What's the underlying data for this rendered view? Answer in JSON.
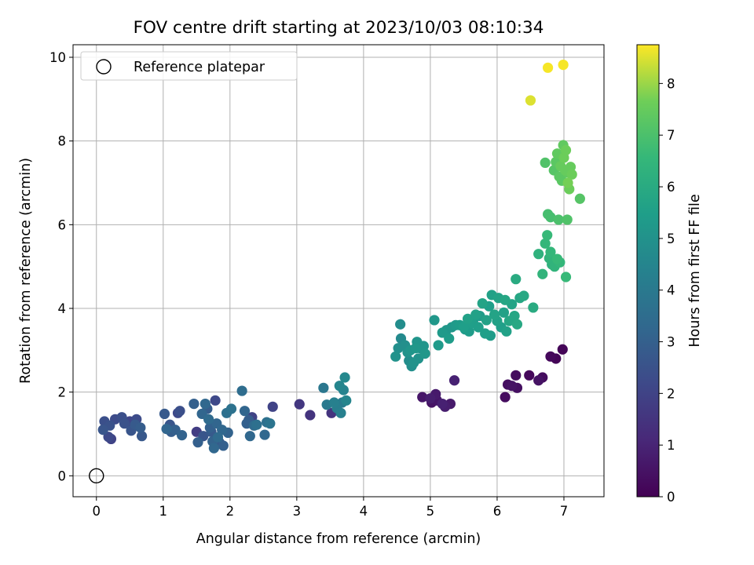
{
  "chart_data": {
    "type": "scatter",
    "title": "FOV centre drift starting at 2023/10/03 08:10:34",
    "xlabel": "Angular distance from reference (arcmin)",
    "ylabel": "Rotation from reference (arcmin)",
    "xlim": [
      -0.35,
      7.6
    ],
    "ylim": [
      -0.5,
      10.3
    ],
    "xticks": [
      "0",
      "1",
      "2",
      "3",
      "4",
      "5",
      "6",
      "7"
    ],
    "yticks": [
      "0",
      "2",
      "4",
      "6",
      "8",
      "10"
    ],
    "grid": true,
    "legend": {
      "placement": "top-left",
      "entries": [
        "Reference platepar"
      ]
    },
    "reference_point": {
      "x": 0,
      "y": 0
    },
    "colorbar": {
      "label": "Hours from first FF file",
      "range": [
        0,
        8.75
      ],
      "ticks": [
        "0",
        "1",
        "2",
        "3",
        "4",
        "5",
        "6",
        "7",
        "8"
      ],
      "colormap": "viridis"
    },
    "points": [
      {
        "x": 0.1,
        "y": 1.1,
        "h": 2.6
      },
      {
        "x": 0.12,
        "y": 1.3,
        "h": 2.4
      },
      {
        "x": 0.18,
        "y": 0.93,
        "h": 2.2
      },
      {
        "x": 0.22,
        "y": 0.88,
        "h": 2.0
      },
      {
        "x": 0.2,
        "y": 1.2,
        "h": 2.5
      },
      {
        "x": 0.28,
        "y": 1.35,
        "h": 2.3
      },
      {
        "x": 0.38,
        "y": 1.4,
        "h": 2.4
      },
      {
        "x": 0.42,
        "y": 1.25,
        "h": 2.5
      },
      {
        "x": 0.5,
        "y": 1.3,
        "h": 2.1
      },
      {
        "x": 0.52,
        "y": 1.08,
        "h": 2.6
      },
      {
        "x": 0.58,
        "y": 1.22,
        "h": 2.8
      },
      {
        "x": 0.6,
        "y": 1.35,
        "h": 2.3
      },
      {
        "x": 0.66,
        "y": 1.15,
        "h": 2.9
      },
      {
        "x": 0.68,
        "y": 0.95,
        "h": 2.7
      },
      {
        "x": 1.02,
        "y": 1.48,
        "h": 2.8
      },
      {
        "x": 1.05,
        "y": 1.12,
        "h": 3.2
      },
      {
        "x": 1.1,
        "y": 1.22,
        "h": 2.6
      },
      {
        "x": 1.12,
        "y": 1.05,
        "h": 2.9
      },
      {
        "x": 1.18,
        "y": 1.1,
        "h": 3.0
      },
      {
        "x": 1.22,
        "y": 1.5,
        "h": 2.2
      },
      {
        "x": 1.25,
        "y": 1.55,
        "h": 2.4
      },
      {
        "x": 1.28,
        "y": 0.97,
        "h": 3.1
      },
      {
        "x": 1.46,
        "y": 1.72,
        "h": 3.0
      },
      {
        "x": 1.5,
        "y": 1.05,
        "h": 1.8
      },
      {
        "x": 1.52,
        "y": 0.8,
        "h": 3.0
      },
      {
        "x": 1.58,
        "y": 1.48,
        "h": 3.2
      },
      {
        "x": 1.6,
        "y": 0.95,
        "h": 2.6
      },
      {
        "x": 1.63,
        "y": 1.72,
        "h": 3.3
      },
      {
        "x": 1.66,
        "y": 1.6,
        "h": 2.9
      },
      {
        "x": 1.68,
        "y": 1.35,
        "h": 3.4
      },
      {
        "x": 1.7,
        "y": 1.15,
        "h": 3.0
      },
      {
        "x": 1.72,
        "y": 1.05,
        "h": 2.8
      },
      {
        "x": 1.74,
        "y": 0.82,
        "h": 3.1
      },
      {
        "x": 1.76,
        "y": 0.66,
        "h": 3.3
      },
      {
        "x": 1.78,
        "y": 1.8,
        "h": 2.2
      },
      {
        "x": 1.8,
        "y": 1.25,
        "h": 3.2
      },
      {
        "x": 1.82,
        "y": 0.92,
        "h": 3.4
      },
      {
        "x": 1.84,
        "y": 0.8,
        "h": 2.7
      },
      {
        "x": 1.88,
        "y": 1.1,
        "h": 3.3
      },
      {
        "x": 1.9,
        "y": 0.72,
        "h": 3.0
      },
      {
        "x": 1.95,
        "y": 1.5,
        "h": 3.6
      },
      {
        "x": 1.97,
        "y": 1.03,
        "h": 3.1
      },
      {
        "x": 2.02,
        "y": 1.6,
        "h": 3.7
      },
      {
        "x": 2.18,
        "y": 2.03,
        "h": 3.5
      },
      {
        "x": 2.22,
        "y": 1.55,
        "h": 3.2
      },
      {
        "x": 2.25,
        "y": 1.25,
        "h": 3.0
      },
      {
        "x": 2.28,
        "y": 1.33,
        "h": 2.9
      },
      {
        "x": 2.3,
        "y": 0.95,
        "h": 3.3
      },
      {
        "x": 2.33,
        "y": 1.4,
        "h": 2.0
      },
      {
        "x": 2.36,
        "y": 1.2,
        "h": 3.4
      },
      {
        "x": 2.4,
        "y": 1.22,
        "h": 3.6
      },
      {
        "x": 2.52,
        "y": 0.98,
        "h": 3.3
      },
      {
        "x": 2.55,
        "y": 1.28,
        "h": 3.6
      },
      {
        "x": 2.6,
        "y": 1.25,
        "h": 3.8
      },
      {
        "x": 2.64,
        "y": 1.65,
        "h": 2.0
      },
      {
        "x": 3.04,
        "y": 1.71,
        "h": 1.6
      },
      {
        "x": 3.2,
        "y": 1.45,
        "h": 1.5
      },
      {
        "x": 3.4,
        "y": 2.1,
        "h": 3.9
      },
      {
        "x": 3.45,
        "y": 1.7,
        "h": 4.0
      },
      {
        "x": 3.52,
        "y": 1.5,
        "h": 1.5
      },
      {
        "x": 3.56,
        "y": 1.75,
        "h": 4.3
      },
      {
        "x": 3.6,
        "y": 1.62,
        "h": 4.2
      },
      {
        "x": 3.64,
        "y": 2.15,
        "h": 4.5
      },
      {
        "x": 3.66,
        "y": 1.5,
        "h": 4.3
      },
      {
        "x": 3.68,
        "y": 1.75,
        "h": 4.1
      },
      {
        "x": 3.7,
        "y": 2.05,
        "h": 4.4
      },
      {
        "x": 3.72,
        "y": 2.35,
        "h": 4.6
      },
      {
        "x": 3.74,
        "y": 1.8,
        "h": 4.5
      },
      {
        "x": 4.48,
        "y": 2.85,
        "h": 5.0
      },
      {
        "x": 4.52,
        "y": 3.05,
        "h": 4.9
      },
      {
        "x": 4.55,
        "y": 3.62,
        "h": 4.8
      },
      {
        "x": 4.56,
        "y": 3.28,
        "h": 4.7
      },
      {
        "x": 4.62,
        "y": 3.12,
        "h": 4.9
      },
      {
        "x": 4.66,
        "y": 2.95,
        "h": 5.0
      },
      {
        "x": 4.68,
        "y": 2.75,
        "h": 4.8
      },
      {
        "x": 4.7,
        "y": 3.0,
        "h": 5.1
      },
      {
        "x": 4.72,
        "y": 2.62,
        "h": 4.9
      },
      {
        "x": 4.75,
        "y": 2.7,
        "h": 5.0
      },
      {
        "x": 4.78,
        "y": 3.05,
        "h": 5.2
      },
      {
        "x": 4.8,
        "y": 3.2,
        "h": 5.1
      },
      {
        "x": 4.82,
        "y": 2.8,
        "h": 5.0
      },
      {
        "x": 4.85,
        "y": 3.05,
        "h": 4.9
      },
      {
        "x": 4.9,
        "y": 3.1,
        "h": 5.1
      },
      {
        "x": 4.92,
        "y": 2.92,
        "h": 5.2
      },
      {
        "x": 4.88,
        "y": 1.88,
        "h": 0.6
      },
      {
        "x": 5.0,
        "y": 1.85,
        "h": 0.8
      },
      {
        "x": 5.02,
        "y": 1.75,
        "h": 0.5
      },
      {
        "x": 5.08,
        "y": 1.95,
        "h": 0.7
      },
      {
        "x": 5.1,
        "y": 1.8,
        "h": 0.6
      },
      {
        "x": 5.18,
        "y": 1.72,
        "h": 0.9
      },
      {
        "x": 5.22,
        "y": 1.65,
        "h": 0.8
      },
      {
        "x": 5.3,
        "y": 1.72,
        "h": 0.7
      },
      {
        "x": 5.36,
        "y": 2.28,
        "h": 0.9
      },
      {
        "x": 5.06,
        "y": 3.72,
        "h": 5.2
      },
      {
        "x": 5.12,
        "y": 3.12,
        "h": 5.3
      },
      {
        "x": 5.18,
        "y": 3.42,
        "h": 5.3
      },
      {
        "x": 5.24,
        "y": 3.48,
        "h": 5.2
      },
      {
        "x": 5.28,
        "y": 3.28,
        "h": 5.4
      },
      {
        "x": 5.32,
        "y": 3.55,
        "h": 5.2
      },
      {
        "x": 5.38,
        "y": 3.6,
        "h": 5.3
      },
      {
        "x": 5.44,
        "y": 3.6,
        "h": 5.4
      },
      {
        "x": 5.5,
        "y": 3.55,
        "h": 5.5
      },
      {
        "x": 5.52,
        "y": 3.5,
        "h": 5.3
      },
      {
        "x": 5.56,
        "y": 3.75,
        "h": 5.6
      },
      {
        "x": 5.58,
        "y": 3.45,
        "h": 5.4
      },
      {
        "x": 5.62,
        "y": 3.65,
        "h": 5.5
      },
      {
        "x": 5.64,
        "y": 3.7,
        "h": 5.3
      },
      {
        "x": 5.68,
        "y": 3.85,
        "h": 5.6
      },
      {
        "x": 5.72,
        "y": 3.55,
        "h": 5.5
      },
      {
        "x": 5.74,
        "y": 3.82,
        "h": 5.4
      },
      {
        "x": 5.78,
        "y": 4.12,
        "h": 5.7
      },
      {
        "x": 5.82,
        "y": 3.4,
        "h": 5.5
      },
      {
        "x": 5.84,
        "y": 3.72,
        "h": 5.6
      },
      {
        "x": 5.88,
        "y": 4.05,
        "h": 5.5
      },
      {
        "x": 5.9,
        "y": 3.35,
        "h": 5.4
      },
      {
        "x": 5.92,
        "y": 4.32,
        "h": 5.6
      },
      {
        "x": 5.96,
        "y": 3.85,
        "h": 5.7
      },
      {
        "x": 6.0,
        "y": 3.7,
        "h": 5.6
      },
      {
        "x": 6.02,
        "y": 4.25,
        "h": 5.7
      },
      {
        "x": 6.06,
        "y": 3.55,
        "h": 5.5
      },
      {
        "x": 6.1,
        "y": 3.9,
        "h": 5.6
      },
      {
        "x": 6.12,
        "y": 4.2,
        "h": 5.8
      },
      {
        "x": 6.14,
        "y": 3.45,
        "h": 5.6
      },
      {
        "x": 6.18,
        "y": 3.7,
        "h": 5.8
      },
      {
        "x": 6.22,
        "y": 4.1,
        "h": 5.7
      },
      {
        "x": 6.26,
        "y": 3.82,
        "h": 5.8
      },
      {
        "x": 6.28,
        "y": 4.7,
        "h": 6.0
      },
      {
        "x": 6.3,
        "y": 3.62,
        "h": 5.9
      },
      {
        "x": 6.34,
        "y": 4.25,
        "h": 5.8
      },
      {
        "x": 6.4,
        "y": 4.3,
        "h": 5.9
      },
      {
        "x": 6.54,
        "y": 4.02,
        "h": 6.0
      },
      {
        "x": 6.12,
        "y": 1.88,
        "h": 0.3
      },
      {
        "x": 6.16,
        "y": 2.18,
        "h": 0.4
      },
      {
        "x": 6.22,
        "y": 2.15,
        "h": 0.5
      },
      {
        "x": 6.28,
        "y": 2.4,
        "h": 0.3
      },
      {
        "x": 6.3,
        "y": 2.1,
        "h": 0.4
      },
      {
        "x": 6.48,
        "y": 2.4,
        "h": 0.2
      },
      {
        "x": 6.62,
        "y": 2.28,
        "h": 0.5
      },
      {
        "x": 6.68,
        "y": 2.35,
        "h": 0.3
      },
      {
        "x": 6.8,
        "y": 2.85,
        "h": 0.2
      },
      {
        "x": 6.88,
        "y": 2.8,
        "h": 0.1
      },
      {
        "x": 6.98,
        "y": 3.02,
        "h": 0.1
      },
      {
        "x": 6.62,
        "y": 5.3,
        "h": 6.3
      },
      {
        "x": 6.68,
        "y": 4.82,
        "h": 6.4
      },
      {
        "x": 6.72,
        "y": 5.55,
        "h": 6.5
      },
      {
        "x": 6.75,
        "y": 5.75,
        "h": 6.6
      },
      {
        "x": 6.78,
        "y": 5.2,
        "h": 6.4
      },
      {
        "x": 6.8,
        "y": 5.35,
        "h": 6.5
      },
      {
        "x": 6.82,
        "y": 5.05,
        "h": 6.3
      },
      {
        "x": 6.86,
        "y": 5.0,
        "h": 6.4
      },
      {
        "x": 6.9,
        "y": 5.18,
        "h": 6.6
      },
      {
        "x": 6.94,
        "y": 5.1,
        "h": 6.5
      },
      {
        "x": 7.03,
        "y": 4.75,
        "h": 6.6
      },
      {
        "x": 6.76,
        "y": 6.25,
        "h": 6.9
      },
      {
        "x": 6.8,
        "y": 6.18,
        "h": 6.9
      },
      {
        "x": 6.92,
        "y": 6.12,
        "h": 7.0
      },
      {
        "x": 7.05,
        "y": 6.12,
        "h": 7.1
      },
      {
        "x": 7.24,
        "y": 6.62,
        "h": 7.2
      },
      {
        "x": 6.72,
        "y": 7.48,
        "h": 7.1
      },
      {
        "x": 6.85,
        "y": 7.3,
        "h": 7.2
      },
      {
        "x": 6.88,
        "y": 7.5,
        "h": 7.3
      },
      {
        "x": 6.9,
        "y": 7.7,
        "h": 7.4
      },
      {
        "x": 6.93,
        "y": 7.15,
        "h": 7.3
      },
      {
        "x": 6.95,
        "y": 7.4,
        "h": 7.5
      },
      {
        "x": 6.97,
        "y": 7.05,
        "h": 7.3
      },
      {
        "x": 6.99,
        "y": 7.9,
        "h": 7.4
      },
      {
        "x": 7.0,
        "y": 7.6,
        "h": 7.6
      },
      {
        "x": 7.02,
        "y": 7.3,
        "h": 7.5
      },
      {
        "x": 7.03,
        "y": 7.78,
        "h": 7.6
      },
      {
        "x": 7.05,
        "y": 7.25,
        "h": 7.4
      },
      {
        "x": 7.06,
        "y": 7.0,
        "h": 7.7
      },
      {
        "x": 7.08,
        "y": 6.85,
        "h": 7.6
      },
      {
        "x": 7.1,
        "y": 7.38,
        "h": 7.5
      },
      {
        "x": 7.12,
        "y": 7.2,
        "h": 7.6
      },
      {
        "x": 6.5,
        "y": 8.97,
        "h": 8.5
      },
      {
        "x": 6.76,
        "y": 9.75,
        "h": 8.7
      },
      {
        "x": 6.99,
        "y": 9.82,
        "h": 8.7
      }
    ]
  }
}
